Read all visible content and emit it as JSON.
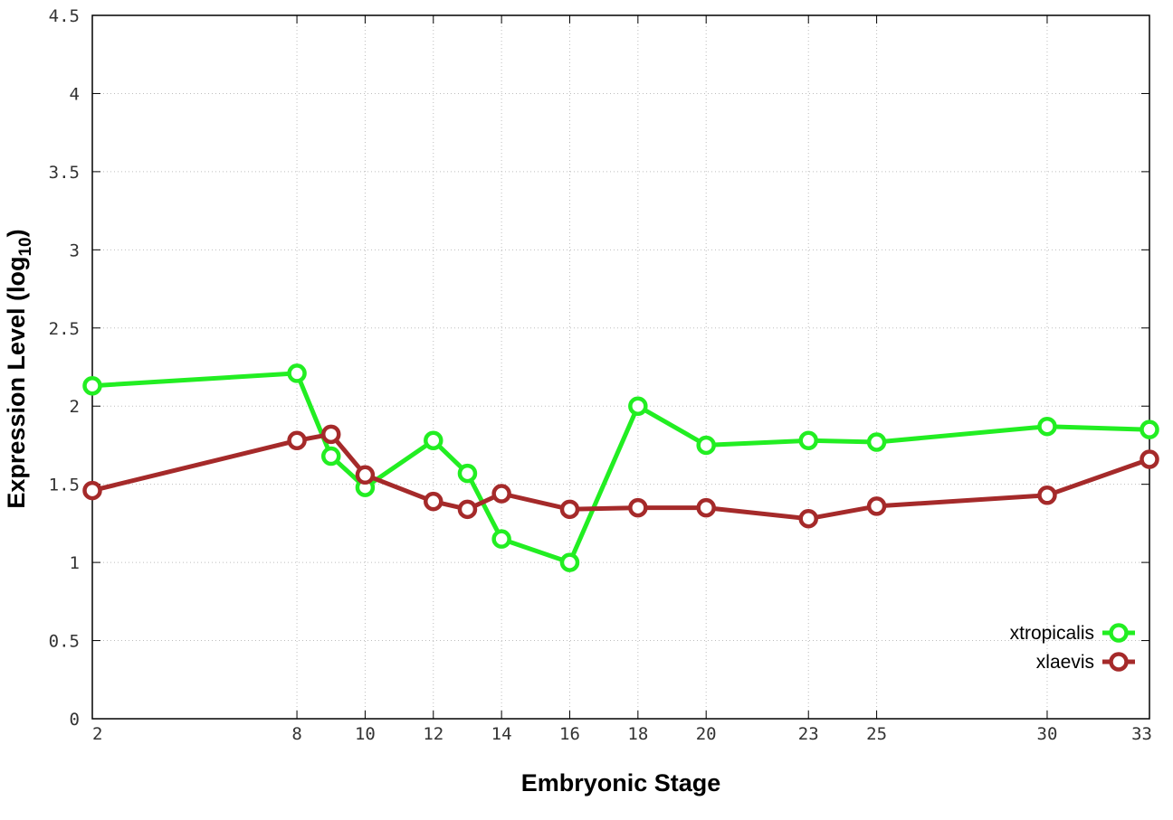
{
  "chart_data": {
    "type": "line",
    "xlabel": "Embryonic Stage",
    "ylabel": "Expression Level (log",
    "ylabel_subscript": "10",
    "ylabel_suffix": ")",
    "x_ticks": [
      2,
      8,
      10,
      12,
      14,
      16,
      18,
      20,
      23,
      25,
      30,
      33
    ],
    "x_tick_labels": [
      "2",
      "8",
      "10",
      "12",
      "14",
      "16",
      "18",
      "20",
      "23",
      "25",
      "30",
      "33"
    ],
    "y_ticks": [
      0,
      0.5,
      1,
      1.5,
      2,
      2.5,
      3,
      3.5,
      4,
      4.5
    ],
    "y_tick_labels": [
      "0",
      "0.5",
      "1",
      "1.5",
      "2",
      "2.5",
      "3",
      "3.5",
      "4",
      "4.5"
    ],
    "xlim": [
      2,
      33
    ],
    "ylim": [
      0,
      4.5
    ],
    "grid": true,
    "legend_position": "bottom-right",
    "series": [
      {
        "name": "xtropicalis",
        "color": "#22ee22",
        "marker": "circle",
        "x": [
          2,
          8,
          9,
          10,
          12,
          13,
          14,
          16,
          18,
          20,
          23,
          25,
          30,
          33
        ],
        "y": [
          2.13,
          2.21,
          1.68,
          1.48,
          1.78,
          1.57,
          1.15,
          1.0,
          2.0,
          1.75,
          1.78,
          1.77,
          1.87,
          1.85
        ]
      },
      {
        "name": "xlaevis",
        "color": "#a52a2a",
        "marker": "circle",
        "x": [
          2,
          8,
          9,
          10,
          12,
          13,
          14,
          16,
          18,
          20,
          23,
          25,
          30,
          33
        ],
        "y": [
          1.46,
          1.78,
          1.82,
          1.56,
          1.39,
          1.34,
          1.44,
          1.34,
          1.35,
          1.35,
          1.28,
          1.36,
          1.43,
          1.66
        ]
      }
    ]
  }
}
